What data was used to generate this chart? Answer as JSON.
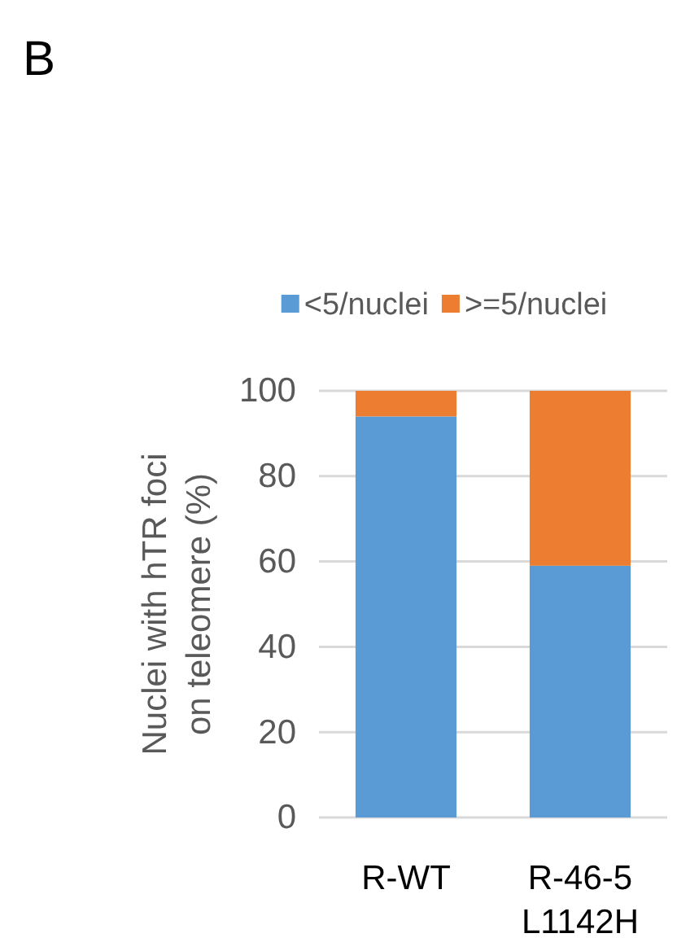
{
  "chart_data": {
    "type": "bar",
    "stacked": true,
    "annotations": [
      "B"
    ],
    "ylabel": "Nuclei with hTR foci on teleomere (%)",
    "categories": [
      "R-WT",
      "R-46-5 L1142H"
    ],
    "series": [
      {
        "name": "<5/nuclei",
        "color": "#5b9bd5",
        "values": [
          94,
          59
        ]
      },
      {
        "name": ">=5/nuclei",
        "color": "#ed7d31",
        "values": [
          6,
          41
        ]
      }
    ],
    "ylim": [
      0,
      100
    ],
    "yticks": [
      0,
      20,
      40,
      60,
      80,
      100
    ],
    "grid": "y",
    "legend": "top"
  }
}
